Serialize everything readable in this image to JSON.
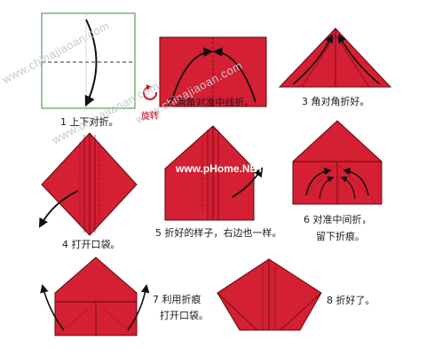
{
  "watermarks": {
    "left": "www.chinajiaoan.com",
    "center": "www.chinajiaoan.com",
    "middle": "www.chinajiaoan.com",
    "site": "www.pHome.NET"
  },
  "rotate_label": "旋转",
  "steps": [
    {
      "caption": "1 上下对折。"
    },
    {
      "caption": "2 两角对准中线折。"
    },
    {
      "caption": "3 角对角折好。"
    },
    {
      "caption": "4 打开口袋。"
    },
    {
      "caption": "5 折好的样子，右边也一样。"
    },
    {
      "caption": "6 对准中间折，",
      "caption2": "留下折痕。"
    },
    {
      "caption": "7 利用折痕",
      "caption2": "打开口袋。"
    },
    {
      "caption": "8 折好了。"
    }
  ],
  "colors": {
    "paper": "#d51f33",
    "fold_line": "#5a0b12",
    "arrow": "#111111",
    "rotate": "#cc1020"
  }
}
